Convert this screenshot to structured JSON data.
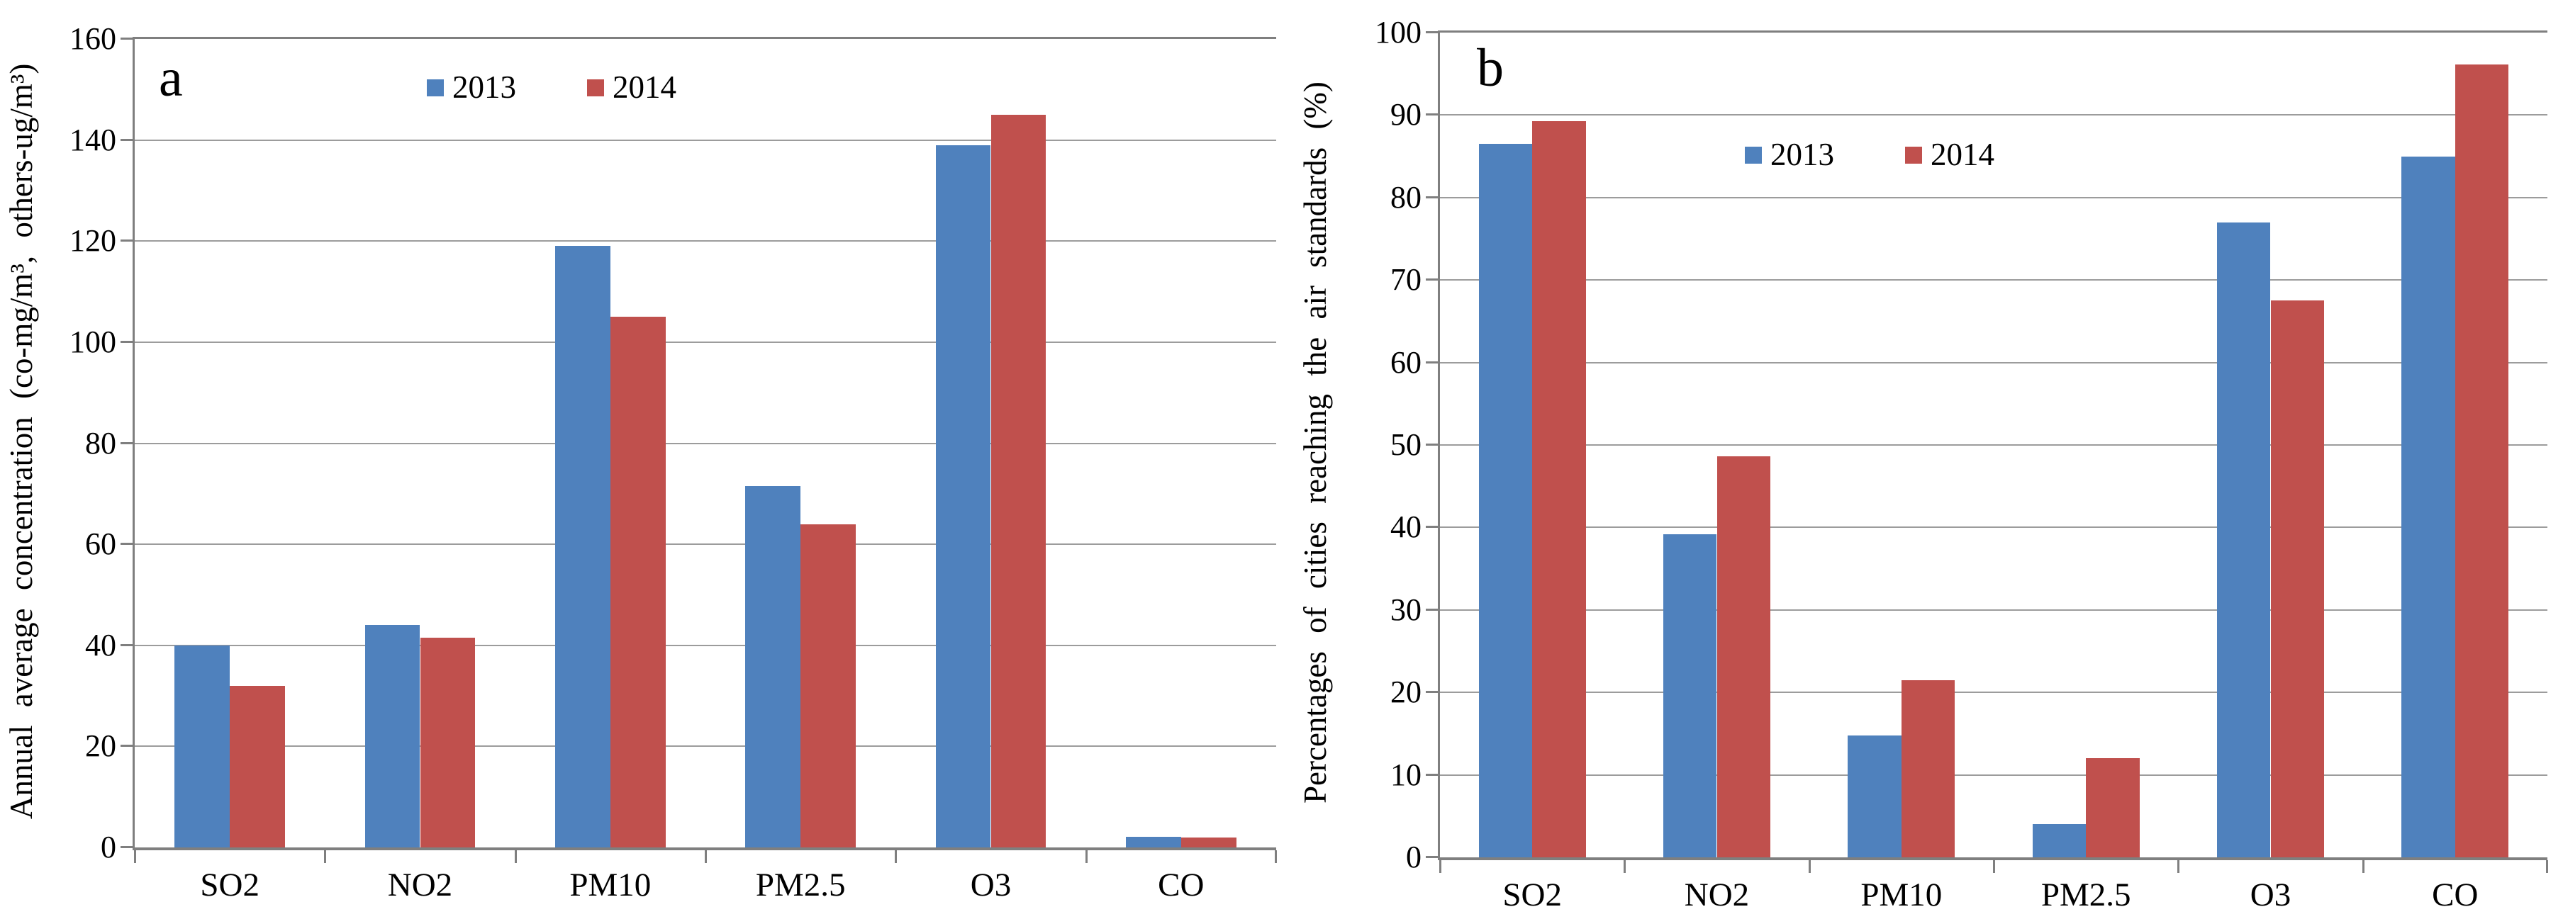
{
  "colors": {
    "background": "#FFFFFF",
    "axis": "#7F7F7F",
    "gridline": "#9C9C9C",
    "text": "#000000",
    "series_2013": "#4F81BD",
    "series_2014": "#C0504D"
  },
  "chart_data": [
    {
      "type": "bar",
      "panel_label": "a",
      "title": "",
      "xlabel": "",
      "ylabel": "Annual average concentration (co-mg/m³, others-ug/m³)",
      "ylim": [
        0,
        160
      ],
      "ytick_step": 20,
      "yticks": [
        0,
        20,
        40,
        60,
        80,
        100,
        120,
        140,
        160
      ],
      "grid": true,
      "legend_position": "inside-top-center",
      "categories": [
        "SO2",
        "NO2",
        "PM10",
        "PM2.5",
        "O3",
        "CO"
      ],
      "series": [
        {
          "name": "2013",
          "color": "#4F81BD",
          "values": [
            40,
            44,
            119,
            71.5,
            139,
            2.1
          ]
        },
        {
          "name": "2014",
          "color": "#C0504D",
          "values": [
            32,
            41.5,
            105,
            64,
            145,
            2
          ]
        }
      ]
    },
    {
      "type": "bar",
      "panel_label": "b",
      "title": "",
      "xlabel": "",
      "ylabel": "Percentages of cities reaching the air standards (%)",
      "ylim": [
        0,
        100
      ],
      "ytick_step": 10,
      "yticks": [
        0,
        10,
        20,
        30,
        40,
        50,
        60,
        70,
        80,
        90,
        100
      ],
      "grid": true,
      "legend_position": "inside-upper-middle",
      "categories": [
        "SO2",
        "NO2",
        "PM10",
        "PM2.5",
        "O3",
        "CO"
      ],
      "series": [
        {
          "name": "2013",
          "color": "#4F81BD",
          "values": [
            86.5,
            39.2,
            14.8,
            4,
            77,
            85
          ]
        },
        {
          "name": "2014",
          "color": "#C0504D",
          "values": [
            89.3,
            48.6,
            21.5,
            12,
            67.5,
            96.1
          ]
        }
      ]
    }
  ]
}
